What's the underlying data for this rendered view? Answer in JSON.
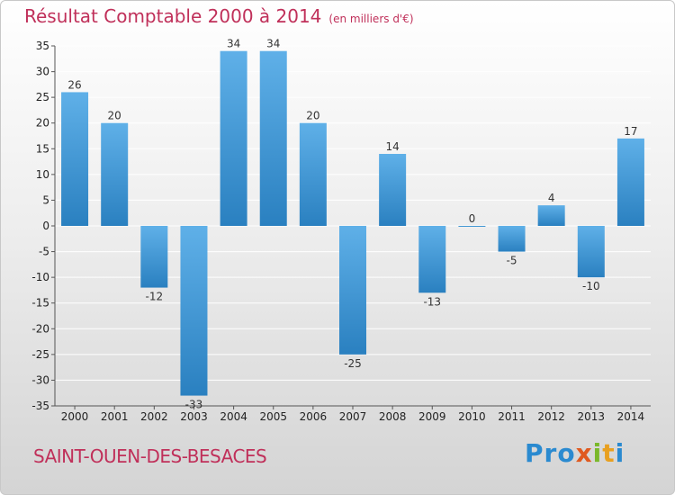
{
  "chart_data": {
    "type": "bar",
    "title": "Résultat Comptable 2000 à 2014",
    "subtitle": "(en milliers d'€)",
    "categories": [
      "2000",
      "2001",
      "2002",
      "2003",
      "2004",
      "2005",
      "2006",
      "2007",
      "2008",
      "2009",
      "2010",
      "2011",
      "2012",
      "2013",
      "2014"
    ],
    "values": [
      26,
      20,
      -12,
      -33,
      34,
      34,
      20,
      -25,
      14,
      -13,
      0,
      -5,
      4,
      -10,
      17
    ],
    "ylim": [
      -35,
      35
    ],
    "yticks": [
      35,
      30,
      25,
      20,
      15,
      10,
      5,
      0,
      -5,
      -10,
      -15,
      -20,
      -25,
      -30,
      -35
    ],
    "xlabel": "",
    "ylabel": "",
    "grid": true
  },
  "footer": {
    "commune": "SAINT-OUEN-DES-BESACES",
    "logo": [
      "P",
      "r",
      "o",
      "x",
      "i",
      "t",
      "i"
    ]
  },
  "colors": {
    "bar_light": "#5fb0e8",
    "bar_dark": "#2a80c0",
    "title": "#c0305a",
    "grid": "#ffffff",
    "logo": [
      "#2a8ad0",
      "#2a8ad0",
      "#2a8ad0",
      "#e05a20",
      "#7ab82a",
      "#e8a020",
      "#2a8ad0"
    ]
  }
}
